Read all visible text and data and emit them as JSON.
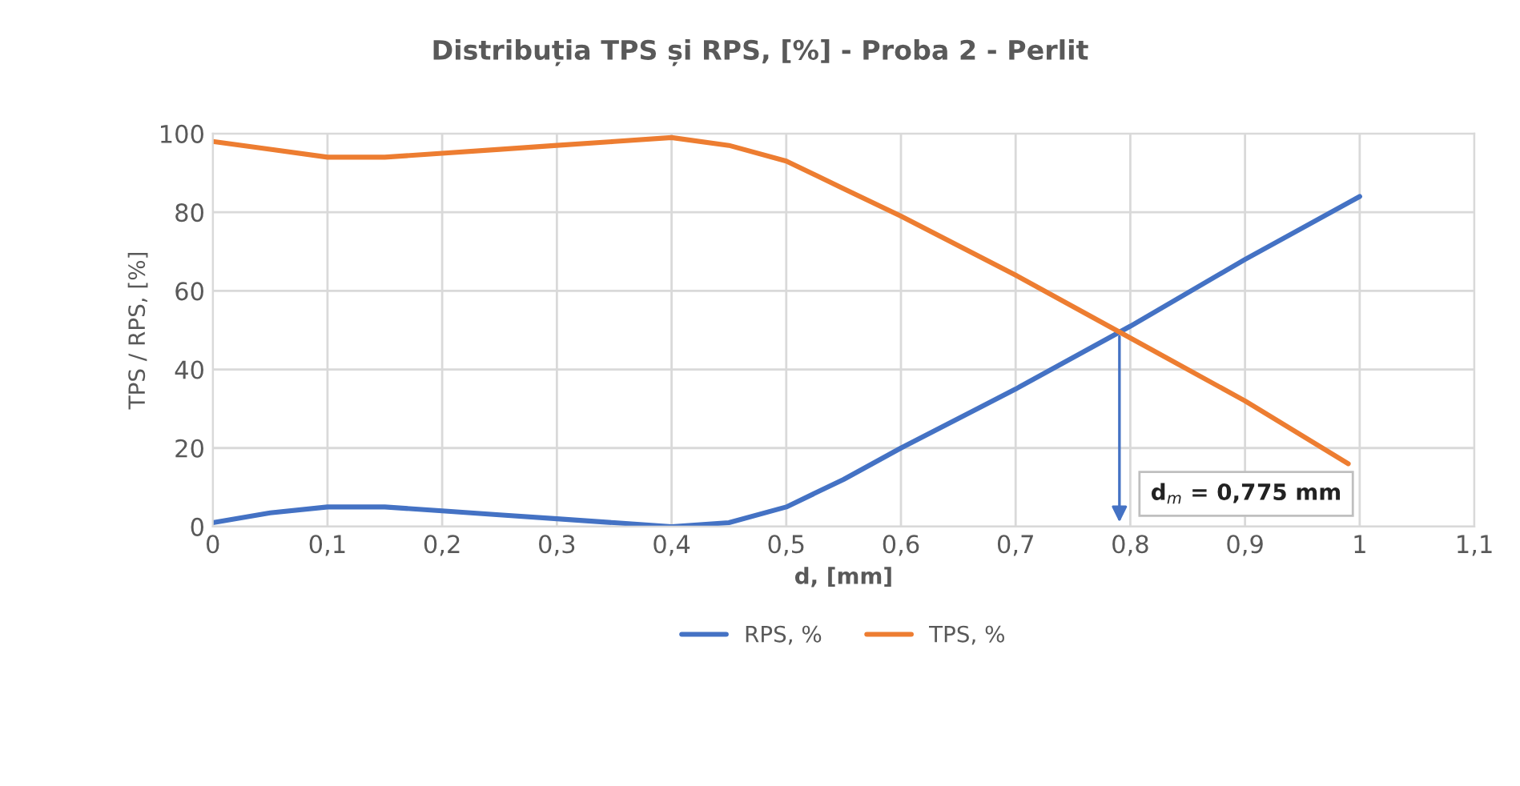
{
  "chart_data": {
    "type": "line",
    "title": "Distribuția TPS și RPS, [%] - Proba 2 - Perlit",
    "xlabel": "d, [mm]",
    "ylabel": "TPS / RPS, [%]",
    "x": [
      0,
      0.05,
      0.1,
      0.15,
      0.2,
      0.25,
      0.3,
      0.35,
      0.4,
      0.45,
      0.5,
      0.55,
      0.6,
      0.7,
      0.8,
      0.9,
      1.0
    ],
    "series": [
      {
        "name": "RPS, %",
        "color": "#4472c4",
        "values": [
          1,
          3.5,
          5,
          5,
          4,
          3,
          2,
          1,
          0,
          1,
          5,
          12,
          20,
          35,
          51,
          68,
          84
        ]
      },
      {
        "name": "TPS, %",
        "color": "#ed7d31",
        "x": [
          0,
          0.05,
          0.1,
          0.15,
          0.2,
          0.25,
          0.3,
          0.35,
          0.4,
          0.45,
          0.5,
          0.55,
          0.6,
          0.7,
          0.8,
          0.9,
          0.99
        ],
        "values": [
          98,
          96,
          94,
          94,
          95,
          96,
          97,
          98,
          99,
          97,
          93,
          86,
          79,
          64,
          48,
          32,
          16
        ]
      }
    ],
    "xlim": [
      0,
      1.1
    ],
    "ylim": [
      0,
      100
    ],
    "xticks": [
      0,
      {
        "value": 0.1,
        "label": "0,1"
      },
      {
        "value": 0.2,
        "label": "0,2"
      },
      {
        "value": 0.3,
        "label": "0,3"
      },
      {
        "value": 0.4,
        "label": "0,4"
      },
      {
        "value": 0.5,
        "label": "0,5"
      },
      {
        "value": 0.6,
        "label": "0,6"
      },
      {
        "value": 0.7,
        "label": "0,7"
      },
      {
        "value": 0.8,
        "label": "0,8"
      },
      {
        "value": 0.9,
        "label": "0,9"
      },
      1,
      {
        "value": 1.1,
        "label": "1,1"
      }
    ],
    "yticks": [
      0,
      20,
      40,
      60,
      80,
      100
    ],
    "annotations": [
      "d$_{m}$ = 0,775 mm"
    ],
    "grid": true,
    "legend": "bottom",
    "marker": "none",
    "line_style": "solid"
  }
}
